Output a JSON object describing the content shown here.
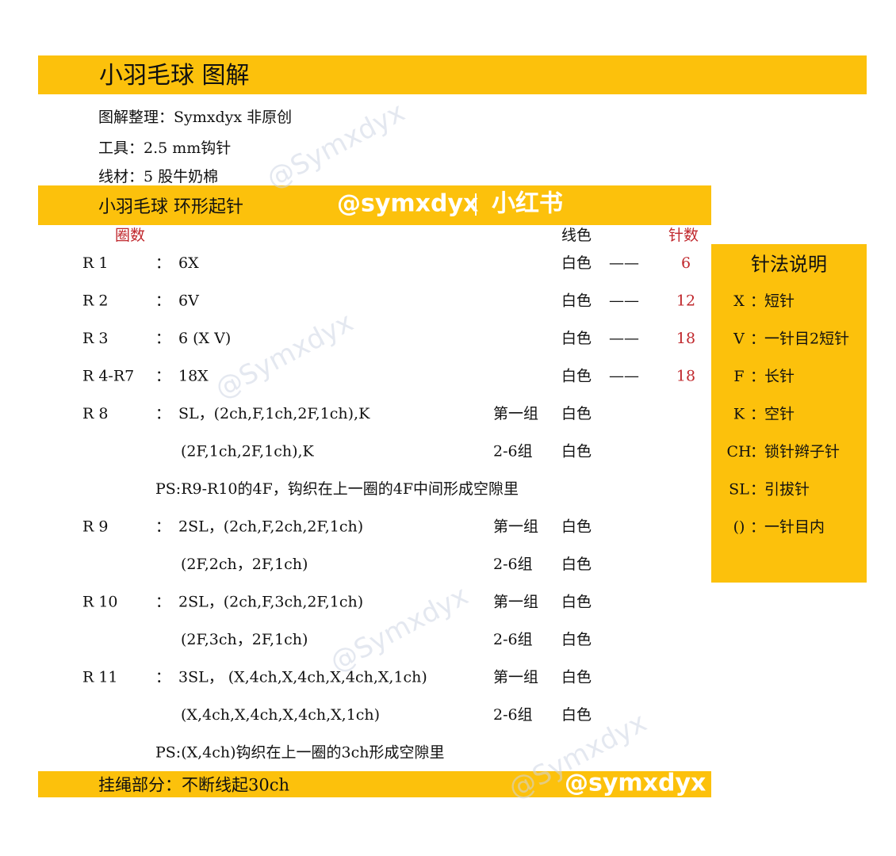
{
  "header": {
    "title": "小羽毛球 图解"
  },
  "info": [
    "图解整理：Symxdyx 非原创",
    "工具：2.5 mm钩针",
    "线材：5 股牛奶棉"
  ],
  "section": {
    "title": "小羽毛球 环形起针"
  },
  "watermarks": [
    "@Symxdyx",
    "@symxdyx",
    "小红书"
  ],
  "columns": {
    "round": "圈数",
    "color": "线色",
    "count": "针数"
  },
  "separator": "：",
  "rows": [
    {
      "round": "R 1",
      "instruction": "6X",
      "color": "白色",
      "dash": "——",
      "count": 6
    },
    {
      "round": "R 2",
      "instruction": "6V",
      "color": "白色",
      "dash": "——",
      "count": 12
    },
    {
      "round": "R 3",
      "instruction": "6 (X V)",
      "color": "白色",
      "dash": "——",
      "count": 18
    },
    {
      "round": "R 4-R7",
      "instruction": "18X",
      "color": "白色",
      "dash": "——",
      "count": 18
    },
    {
      "round": "R 8",
      "instruction": "SL，(2ch,F,1ch,2F,1ch),K",
      "group": "第一组",
      "color": "白色"
    },
    {
      "instruction": "(2F,1ch,2F,1ch),K",
      "group": "2-6组",
      "color": "白色"
    },
    {
      "note": "PS:R9-R10的4F，钩织在上一圈的4F中间形成空隙里"
    },
    {
      "round": "R 9",
      "instruction": "2SL，(2ch,F,2ch,2F,1ch)",
      "group": "第一组",
      "color": "白色"
    },
    {
      "instruction": "(2F,2ch，2F,1ch)",
      "group": "2-6组",
      "color": "白色"
    },
    {
      "round": "R 10",
      "instruction": "2SL，(2ch,F,3ch,2F,1ch)",
      "group": "第一组",
      "color": "白色"
    },
    {
      "instruction": "(2F,3ch，2F,1ch)",
      "group": "2-6组",
      "color": "白色"
    },
    {
      "round": "R 11",
      "instruction": "3SL， (X,4ch,X,4ch,X,4ch,X,1ch)",
      "group": "第一组",
      "color": "白色"
    },
    {
      "instruction": "(X,4ch,X,4ch,X,4ch,X,1ch)",
      "group": "2-6组",
      "color": "白色"
    },
    {
      "note": "PS:(X,4ch)钩织在上一圈的3ch形成空隙里"
    }
  ],
  "legend": {
    "title": "针法说明",
    "items": [
      {
        "key": "X",
        "desc": "短针"
      },
      {
        "key": "V",
        "desc": "一针目2短针"
      },
      {
        "key": "F",
        "desc": "长针"
      },
      {
        "key": "K",
        "desc": "空针"
      },
      {
        "key": "CH",
        "desc": "锁针辫子针"
      },
      {
        "key": "SL",
        "desc": "引拔针"
      },
      {
        "key": "()",
        "desc": "一针目内"
      }
    ]
  },
  "footer": {
    "text": "挂绳部分：不断线起30ch"
  }
}
